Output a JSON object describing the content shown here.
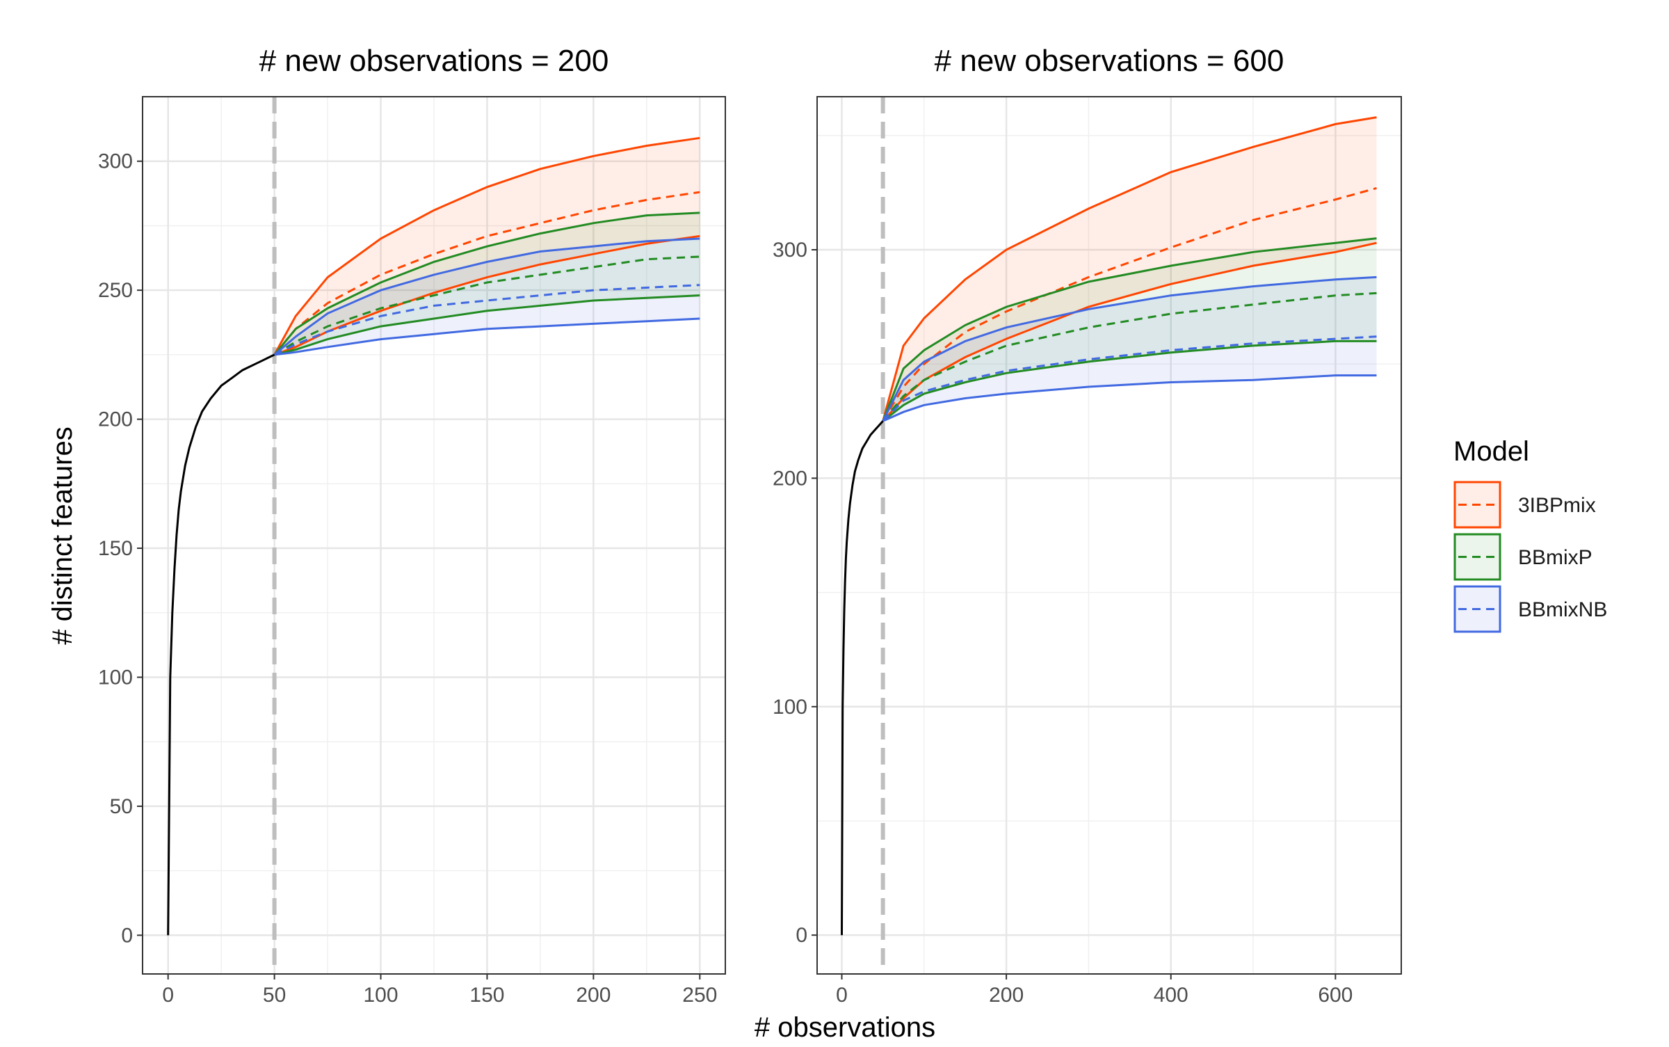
{
  "chart_data": {
    "type": "line",
    "xlabel": "# observations",
    "ylabel": "# distinct features",
    "legend": {
      "title": "Model",
      "position": "right",
      "entries": [
        {
          "name": "3IBPmix",
          "color": "#FF4500"
        },
        {
          "name": "BBmixP",
          "color": "#228B22"
        },
        {
          "name": "BBmixNB",
          "color": "#4169E1"
        }
      ]
    },
    "grid": true,
    "observed_line_color": "#000000",
    "vline_color": "#BEBEBE",
    "panels": [
      {
        "title": "# new observations = 200",
        "xlim": [
          -12,
          262
        ],
        "ylim": [
          -15,
          325
        ],
        "xticks": [
          0,
          50,
          100,
          150,
          200,
          250
        ],
        "yticks": [
          0,
          50,
          100,
          150,
          200,
          250,
          300
        ],
        "vline_x": 50,
        "observed": {
          "x": [
            0,
            1,
            2,
            3,
            4,
            5,
            6,
            8,
            10,
            13,
            16,
            20,
            25,
            30,
            35,
            40,
            45,
            50
          ],
          "y": [
            0,
            100,
            125,
            142,
            155,
            165,
            172,
            182,
            189,
            197,
            203,
            208,
            213,
            216,
            219,
            221,
            223,
            225
          ]
        },
        "series": [
          {
            "name": "3IBPmix",
            "x": [
              50,
              60,
              75,
              100,
              125,
              150,
              175,
              200,
              225,
              250
            ],
            "mean": [
              225,
              235,
              245,
              256,
              264,
              271,
              276,
              281,
              285,
              288
            ],
            "lower": [
              225,
              228,
              234,
              242,
              249,
              255,
              260,
              264,
              268,
              271
            ],
            "upper": [
              225,
              240,
              255,
              270,
              281,
              290,
              297,
              302,
              306,
              309
            ]
          },
          {
            "name": "BBmixP",
            "x": [
              50,
              60,
              75,
              100,
              125,
              150,
              175,
              200,
              225,
              250
            ],
            "mean": [
              225,
              230,
              236,
              243,
              248,
              253,
              256,
              259,
              262,
              263
            ],
            "lower": [
              225,
              227,
              231,
              236,
              239,
              242,
              244,
              246,
              247,
              248
            ],
            "upper": [
              225,
              235,
              243,
              253,
              261,
              267,
              272,
              276,
              279,
              280
            ]
          },
          {
            "name": "BBmixNB",
            "x": [
              50,
              60,
              75,
              100,
              125,
              150,
              175,
              200,
              225,
              250
            ],
            "mean": [
              225,
              229,
              234,
              240,
              244,
              246,
              248,
              250,
              251,
              252
            ],
            "lower": [
              225,
              226,
              228,
              231,
              233,
              235,
              236,
              237,
              238,
              239
            ],
            "upper": [
              225,
              232,
              241,
              250,
              256,
              261,
              265,
              267,
              269,
              270
            ]
          }
        ]
      },
      {
        "title": "# new observations = 600",
        "xlim": [
          -30,
          680
        ],
        "ylim": [
          -17,
          367
        ],
        "xticks": [
          0,
          200,
          400,
          600
        ],
        "yticks": [
          0,
          100,
          200,
          300
        ],
        "vline_x": 50,
        "observed": {
          "x": [
            0,
            1,
            2,
            3,
            4,
            5,
            6,
            8,
            10,
            13,
            16,
            20,
            25,
            30,
            35,
            40,
            45,
            50
          ],
          "y": [
            0,
            100,
            125,
            142,
            155,
            165,
            172,
            182,
            189,
            197,
            203,
            208,
            213,
            216,
            219,
            221,
            223,
            225
          ]
        },
        "series": [
          {
            "name": "3IBPmix",
            "x": [
              50,
              75,
              100,
              150,
              200,
              300,
              400,
              500,
              600,
              650
            ],
            "mean": [
              225,
              240,
              250,
              264,
              273,
              288,
              301,
              313,
              322,
              327
            ],
            "lower": [
              225,
              235,
              243,
              253,
              261,
              275,
              285,
              293,
              299,
              303
            ],
            "upper": [
              225,
              258,
              270,
              287,
              300,
              318,
              334,
              345,
              355,
              358
            ]
          },
          {
            "name": "BBmixP",
            "x": [
              50,
              75,
              100,
              150,
              200,
              300,
              400,
              500,
              600,
              650
            ],
            "mean": [
              225,
              236,
              243,
              251,
              258,
              266,
              272,
              276,
              280,
              281
            ],
            "lower": [
              225,
              232,
              237,
              242,
              246,
              251,
              255,
              258,
              260,
              260
            ],
            "upper": [
              225,
              248,
              256,
              267,
              275,
              286,
              293,
              299,
              303,
              305
            ]
          },
          {
            "name": "BBmixNB",
            "x": [
              50,
              75,
              100,
              150,
              200,
              300,
              400,
              500,
              600,
              650
            ],
            "mean": [
              225,
              234,
              238,
              243,
              247,
              252,
              256,
              259,
              261,
              262
            ],
            "lower": [
              225,
              229,
              232,
              235,
              237,
              240,
              242,
              243,
              245,
              245
            ],
            "upper": [
              225,
              243,
              251,
              260,
              266,
              274,
              280,
              284,
              287,
              288
            ]
          }
        ]
      }
    ]
  }
}
